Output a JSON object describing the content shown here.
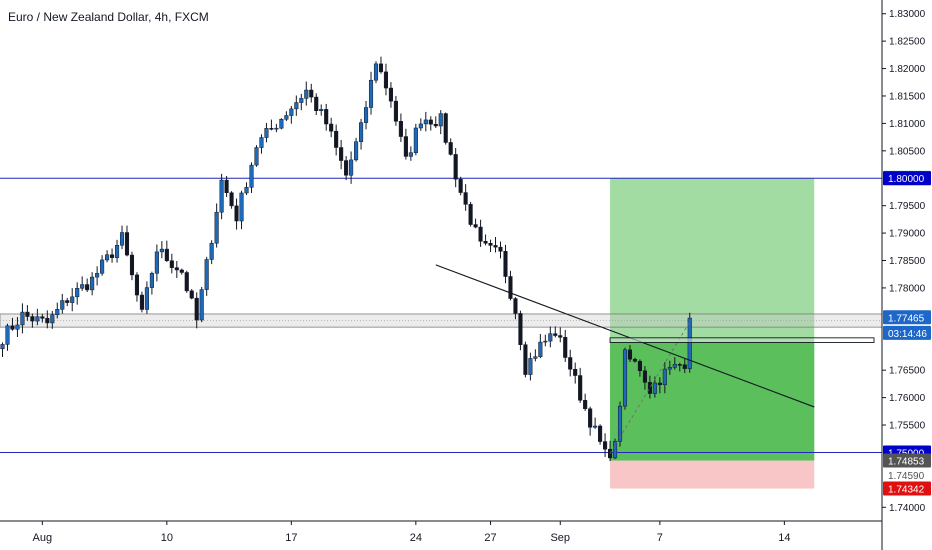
{
  "header": {
    "symbol_title": "Euro / New Zealand Dollar, 4h, FXCM"
  },
  "chart_data": {
    "type": "candlestick",
    "title": "Euro / New Zealand Dollar, 4h, FXCM",
    "ylim": [
      1.7375,
      1.8325
    ],
    "xlim": [
      0,
      183
    ],
    "y_ticks": [
      {
        "value": 1.83,
        "label": "1.83000"
      },
      {
        "value": 1.825,
        "label": "1.82500"
      },
      {
        "value": 1.82,
        "label": "1.82000"
      },
      {
        "value": 1.815,
        "label": "1.81500"
      },
      {
        "value": 1.81,
        "label": "1.81000"
      },
      {
        "value": 1.805,
        "label": "1.80500"
      },
      {
        "value": 1.795,
        "label": "1.79500"
      },
      {
        "value": 1.79,
        "label": "1.79000"
      },
      {
        "value": 1.785,
        "label": "1.78500"
      },
      {
        "value": 1.78,
        "label": "1.78000"
      },
      {
        "value": 1.765,
        "label": "1.76500"
      },
      {
        "value": 1.76,
        "label": "1.76000"
      },
      {
        "value": 1.755,
        "label": "1.75500"
      },
      {
        "value": 1.74,
        "label": "1.74000"
      }
    ],
    "x_ticks": [
      {
        "bar": 8,
        "label": "Aug"
      },
      {
        "bar": 33,
        "label": "10"
      },
      {
        "bar": 58,
        "label": "17"
      },
      {
        "bar": 83,
        "label": "24"
      },
      {
        "bar": 98,
        "label": "27"
      },
      {
        "bar": 112,
        "label": "Sep"
      },
      {
        "bar": 132,
        "label": "7"
      },
      {
        "bar": 157,
        "label": "14"
      }
    ],
    "waypoints": [
      [
        0,
        1.771
      ],
      [
        4,
        1.775
      ],
      [
        9,
        1.7735
      ],
      [
        13,
        1.778
      ],
      [
        18,
        1.7815
      ],
      [
        24,
        1.789
      ],
      [
        28,
        1.775
      ],
      [
        31,
        1.787
      ],
      [
        36,
        1.783
      ],
      [
        39,
        1.774
      ],
      [
        44,
        1.7995
      ],
      [
        47,
        1.793
      ],
      [
        51,
        1.806
      ],
      [
        56,
        1.811
      ],
      [
        61,
        1.816
      ],
      [
        65,
        1.81
      ],
      [
        69,
        1.8005
      ],
      [
        72,
        1.809
      ],
      [
        75,
        1.8215
      ],
      [
        78,
        1.8145
      ],
      [
        81,
        1.803
      ],
      [
        84,
        1.811
      ],
      [
        88,
        1.8105
      ],
      [
        92,
        1.7975
      ],
      [
        96,
        1.7875
      ],
      [
        100,
        1.786
      ],
      [
        103,
        1.776
      ],
      [
        105,
        1.7655
      ],
      [
        108,
        1.7695
      ],
      [
        111,
        1.772
      ],
      [
        113,
        1.768
      ],
      [
        117,
        1.758
      ],
      [
        121,
        1.7495
      ],
      [
        123,
        1.751
      ],
      [
        125,
        1.7675
      ],
      [
        128,
        1.7655
      ],
      [
        130,
        1.7615
      ],
      [
        133,
        1.7645
      ],
      [
        137,
        1.7665
      ],
      [
        138,
        1.7745
      ]
    ],
    "horizontal_lines": [
      {
        "price": 1.8,
        "color": "#2128b5"
      },
      {
        "price": 1.75,
        "color": "#2128b5"
      }
    ],
    "zone_band": {
      "from": 1.77285,
      "to": 1.77525
    },
    "trend_line": {
      "points": [
        [
          87,
          1.7842
        ],
        [
          163,
          1.7583
        ]
      ]
    },
    "small_rect": {
      "x_from": 122,
      "x_to": 175,
      "from": 1.77005,
      "to": 1.7709
    },
    "dashed_line": {
      "points": [
        [
          122,
          1.7498
        ],
        [
          138,
          1.7738
        ]
      ]
    },
    "position": {
      "x_from": 122,
      "x_to": 163,
      "target": 1.80007,
      "entry": 1.7485,
      "stop": 1.74342,
      "profit_color": "#a3dca3",
      "active_color": "#5bbf5b",
      "loss_color": "#f8c6c6"
    },
    "price_labels": [
      {
        "price": 1.80007,
        "label": "1.80007",
        "bg": "#18a318",
        "fg": "#ffffff"
      },
      {
        "price": 1.8,
        "label": "1.80000",
        "bg": "#0000c8",
        "fg": "#ffffff"
      },
      {
        "price": 1.77465,
        "label": "1.77465",
        "bg": "#1c67c8",
        "fg": "#ffffff"
      },
      {
        "price": 1.7718,
        "label": "03:14:46",
        "bg": "#1c67c8",
        "fg": "#ffffff"
      },
      {
        "price": 1.75,
        "label": "1.75000",
        "bg": "#0000c8",
        "fg": "#ffffff"
      },
      {
        "price": 1.74853,
        "label": "1.74853",
        "bg": "#545454",
        "fg": "#ffffff"
      },
      {
        "price": 1.7459,
        "label": "1.74590",
        "bg": "#ffffff",
        "fg": "#555555"
      },
      {
        "price": 1.74342,
        "label": "1.74342",
        "bg": "#e01010",
        "fg": "#ffffff"
      }
    ],
    "colors": {
      "up": "#1f6ab8",
      "down": "#131722",
      "axis_text": "#131722",
      "grid": "#e9e9ec"
    }
  }
}
